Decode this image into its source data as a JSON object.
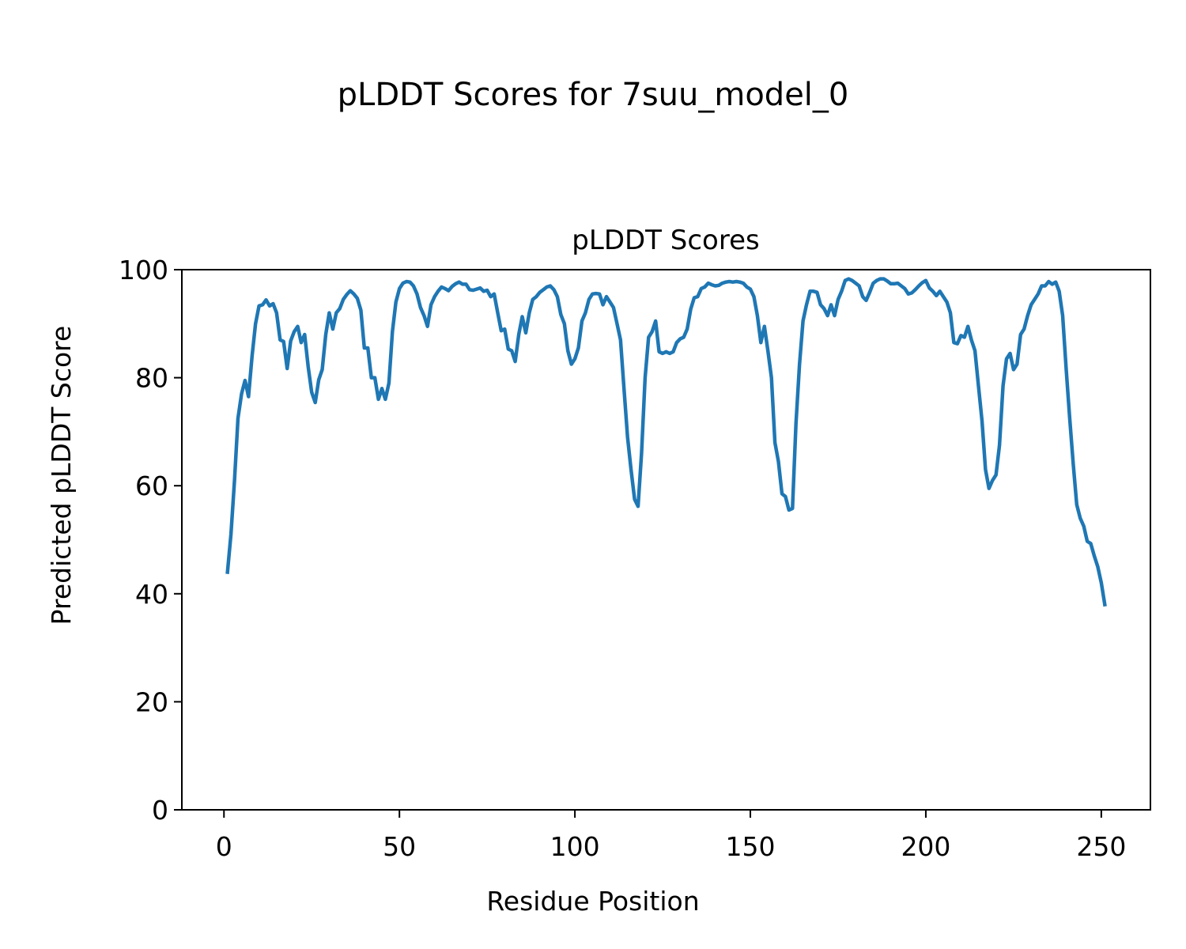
{
  "chart_data": {
    "type": "line",
    "suptitle": "pLDDT Scores for 7suu_model_0",
    "title": "pLDDT Scores",
    "xlabel": "Residue Position",
    "ylabel": "Predicted pLDDT Score",
    "xlim": [
      -12,
      264
    ],
    "ylim": [
      0,
      100
    ],
    "xticks": [
      0,
      50,
      100,
      150,
      200,
      250
    ],
    "yticks": [
      0,
      20,
      40,
      60,
      80,
      100
    ],
    "grid": false,
    "line_color": "#1f77b4",
    "series": [
      {
        "x": [
          1,
          2,
          3,
          4,
          5,
          6,
          7,
          8,
          9,
          10,
          11,
          12,
          13,
          14,
          15,
          16,
          17,
          18,
          19,
          20,
          21,
          22,
          23,
          24,
          25,
          26,
          27,
          28,
          29,
          30,
          31,
          32,
          33,
          34,
          35,
          36,
          37,
          38,
          39,
          40,
          41,
          42,
          43,
          44,
          45,
          46,
          47,
          48,
          49,
          50,
          51,
          52,
          53,
          54,
          55,
          56,
          57,
          58,
          59,
          60,
          61,
          62,
          63,
          64,
          65,
          66,
          67,
          68,
          69,
          70,
          71,
          72,
          73,
          74,
          75,
          76,
          77,
          78,
          79,
          80,
          81,
          82,
          83,
          84,
          85,
          86,
          87,
          88,
          89,
          90,
          91,
          92,
          93,
          94,
          95,
          96,
          97,
          98,
          99,
          100,
          101,
          102,
          103,
          104,
          105,
          106,
          107,
          108,
          109,
          110,
          111,
          112,
          113,
          114,
          115,
          116,
          117,
          118,
          119,
          120,
          121,
          122,
          123,
          124,
          125,
          126,
          127,
          128,
          129,
          130,
          131,
          132,
          133,
          134,
          135,
          136,
          137,
          138,
          139,
          140,
          141,
          142,
          143,
          144,
          145,
          146,
          147,
          148,
          149,
          150,
          151,
          152,
          153,
          154,
          155,
          156,
          157,
          158,
          159,
          160,
          161,
          162,
          163,
          164,
          165,
          166,
          167,
          168,
          169,
          170,
          171,
          172,
          173,
          174,
          175,
          176,
          177,
          178,
          179,
          180,
          181,
          182,
          183,
          184,
          185,
          186,
          187,
          188,
          189,
          190,
          191,
          192,
          193,
          194,
          195,
          196,
          197,
          198,
          199,
          200,
          201,
          202,
          203,
          204,
          205,
          206,
          207,
          208,
          209,
          210,
          211,
          212,
          213,
          214,
          215,
          216,
          217,
          218,
          219,
          220,
          221,
          222,
          223,
          224,
          225,
          226,
          227,
          228,
          229,
          230,
          231,
          232,
          233,
          234,
          235,
          236,
          237,
          238,
          239,
          240,
          241,
          242,
          243,
          244,
          245,
          246,
          247,
          248,
          249,
          250,
          251
        ],
        "values": [
          44,
          51,
          61,
          72.5,
          77,
          79.5,
          76.5,
          84,
          90,
          93.3,
          93.5,
          94.4,
          93.3,
          93.7,
          92,
          87,
          86.7,
          81.7,
          86.8,
          88.5,
          89.5,
          86.5,
          88,
          82,
          77.3,
          75.4,
          79.6,
          81.5,
          88,
          92,
          89,
          92,
          92.8,
          94.5,
          95.4,
          96.1,
          95.5,
          94.7,
          92.5,
          85.5,
          85.5,
          80,
          80,
          76,
          78,
          76,
          79,
          88.5,
          94,
          96.5,
          97.5,
          97.8,
          97.7,
          97,
          95.5,
          93,
          91.5,
          89.5,
          93.5,
          95,
          96,
          96.8,
          96.5,
          96.1,
          96.9,
          97.4,
          97.7,
          97.3,
          97.3,
          96.3,
          96.2,
          96.4,
          96.6,
          96,
          96.2,
          95,
          95.5,
          92,
          88.7,
          89,
          85.3,
          85,
          83,
          88,
          91.3,
          88.3,
          92,
          94.5,
          95,
          95.8,
          96.3,
          96.8,
          97,
          96.3,
          95,
          91.7,
          90,
          85,
          82.5,
          83.5,
          85.5,
          90.5,
          92,
          94.5,
          95.5,
          95.6,
          95.5,
          93.5,
          95,
          94,
          93,
          90,
          87,
          78,
          69,
          63,
          57.5,
          56.2,
          66,
          80,
          87.5,
          88.5,
          90.5,
          84.8,
          84.5,
          84.8,
          84.5,
          84.8,
          86.5,
          87.2,
          87.5,
          89,
          92.7,
          94.8,
          95,
          96.5,
          96.8,
          97.5,
          97.2,
          97,
          97.1,
          97.5,
          97.7,
          97.8,
          97.7,
          97.8,
          97.7,
          97.5,
          96.8,
          96.4,
          95,
          91.5,
          86.5,
          89.5,
          85,
          80,
          68,
          64.5,
          58.5,
          58,
          55.5,
          55.8,
          71.5,
          82.5,
          90.5,
          93.5,
          96,
          96,
          95.8,
          93.5,
          92.8,
          91.5,
          93.5,
          91.5,
          94.5,
          96,
          98,
          98.3,
          98,
          97.5,
          97,
          95,
          94.3,
          95.8,
          97.5,
          98,
          98.3,
          98.3,
          97.9,
          97.4,
          97.4,
          97.5,
          97,
          96.5,
          95.5,
          95.7,
          96.3,
          97,
          97.6,
          98,
          96.6,
          96,
          95.2,
          96,
          95,
          94,
          92,
          86.5,
          86.3,
          87.8,
          87.5,
          89.5,
          87,
          85,
          78.5,
          72,
          63,
          59.5,
          61,
          62,
          67.5,
          78.5,
          83.5,
          84.5,
          81.5,
          82.5,
          88,
          89,
          91.5,
          93.5,
          94.5,
          95.5,
          97,
          97,
          97.8,
          97.3,
          97.7,
          96,
          91.5,
          81.5,
          72.5,
          64,
          56.5,
          54,
          52.5,
          49.7,
          49.3,
          47,
          45,
          42,
          38
        ]
      }
    ]
  }
}
